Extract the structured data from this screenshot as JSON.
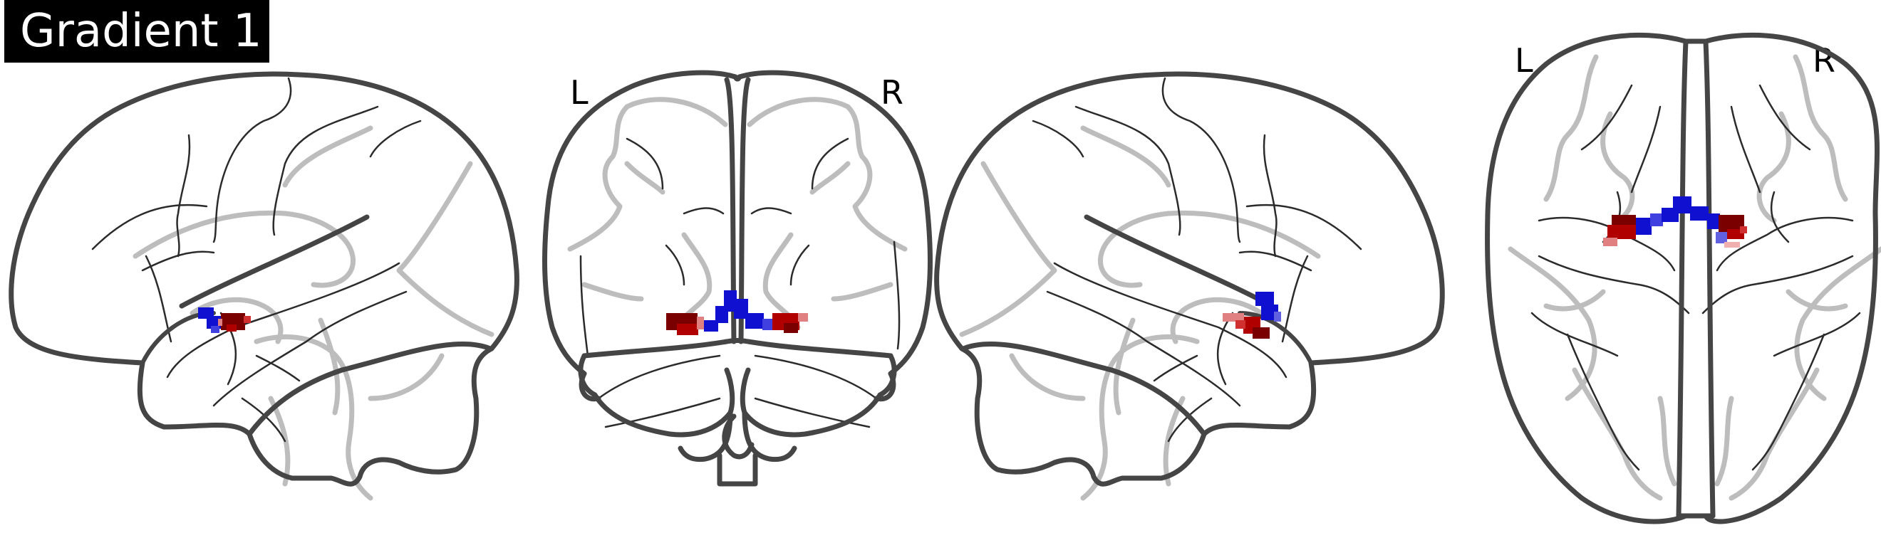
{
  "figure": {
    "title": "Gradient 1",
    "views": [
      {
        "name": "left-sagittal",
        "labels": []
      },
      {
        "name": "coronal",
        "labels": [
          "L",
          "R"
        ]
      },
      {
        "name": "right-sagittal",
        "labels": []
      },
      {
        "name": "axial",
        "labels": [
          "L",
          "R"
        ]
      }
    ]
  },
  "colors": {
    "outline": "#444444",
    "sulci": "#2b2b2b",
    "glass": "#b8b8b8",
    "positive": "#b00000",
    "negative": "#1010d0",
    "title_bg": "#000000",
    "title_fg": "#ffffff"
  }
}
